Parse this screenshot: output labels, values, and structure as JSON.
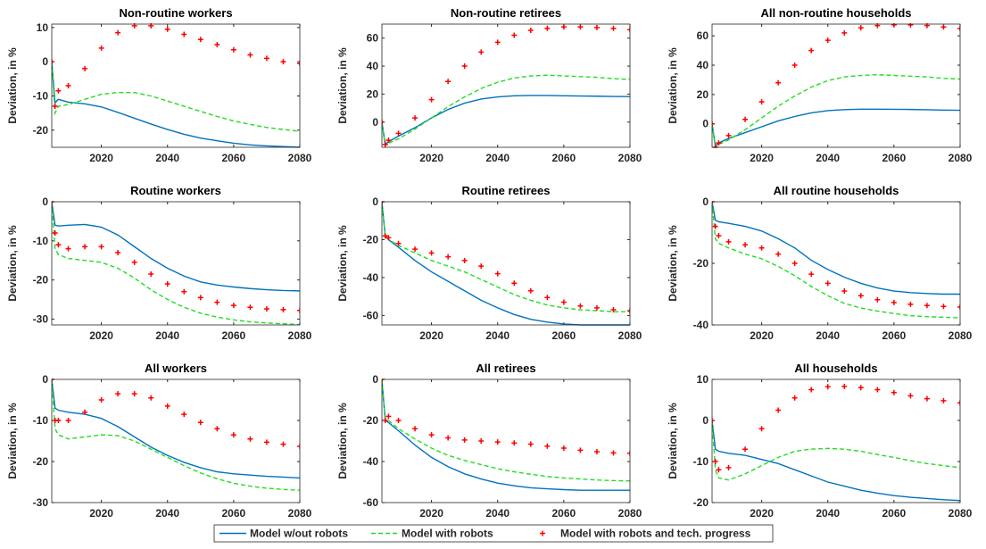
{
  "chart_data": [
    {
      "type": "line",
      "title": "Non-routine workers",
      "ylabel": "Deviation, in %",
      "x": [
        2005,
        2006,
        2007,
        2010,
        2015,
        2020,
        2025,
        2030,
        2035,
        2040,
        2045,
        2050,
        2055,
        2060,
        2065,
        2070,
        2075,
        2080
      ],
      "xlim": [
        2005,
        2080
      ],
      "xticks": [
        2020,
        2040,
        2060,
        2080
      ],
      "ylim": [
        -25,
        11
      ],
      "yticks": [
        -20,
        -10,
        0,
        10
      ],
      "series": [
        {
          "name": "Model w/out robots",
          "color": "#0072bd",
          "style": "solid",
          "values": [
            0,
            -12,
            -11,
            -11.8,
            -12.3,
            -13.2,
            -14.8,
            -16.5,
            -18.2,
            -19.8,
            -21.2,
            -22.3,
            -23.1,
            -23.8,
            -24.3,
            -24.6,
            -24.8,
            -25
          ]
        },
        {
          "name": "Model with robots",
          "color": "#22dd22",
          "style": "dashed",
          "values": [
            0,
            -15,
            -13,
            -12.5,
            -11,
            -9.5,
            -9,
            -9,
            -10,
            -11.5,
            -13,
            -14.5,
            -16,
            -17.3,
            -18.3,
            -19.2,
            -19.8,
            -20.3
          ]
        },
        {
          "name": "Model with robots and tech. progress",
          "color": "#ff0000",
          "style": "markers",
          "values": [
            0,
            -13,
            -8.5,
            -7,
            -2,
            4,
            8.5,
            10.5,
            10.5,
            9.5,
            8,
            6.5,
            5,
            3.5,
            2,
            1,
            0,
            -0.5
          ]
        }
      ]
    },
    {
      "type": "line",
      "title": "Non-routine retirees",
      "ylabel": "Deviation, in %",
      "x": [
        2005,
        2006,
        2007,
        2010,
        2015,
        2020,
        2025,
        2030,
        2035,
        2040,
        2045,
        2050,
        2055,
        2060,
        2065,
        2070,
        2075,
        2080
      ],
      "xlim": [
        2005,
        2080
      ],
      "xticks": [
        2020,
        2040,
        2060,
        2080
      ],
      "ylim": [
        -18,
        70
      ],
      "yticks": [
        0,
        20,
        40,
        60
      ],
      "series": [
        {
          "color": "#0072bd",
          "style": "solid",
          "values": [
            0,
            -16,
            -14,
            -10,
            -4,
            3,
            9,
            13.5,
            16.5,
            18,
            18.8,
            19,
            19,
            18.8,
            18.6,
            18.5,
            18.3,
            18.2
          ]
        },
        {
          "color": "#22dd22",
          "style": "dashed",
          "values": [
            0,
            -17,
            -15,
            -12,
            -5,
            3,
            11,
            18,
            24,
            28.5,
            31.5,
            33,
            33.5,
            33,
            32.5,
            32,
            31,
            30.5
          ]
        },
        {
          "color": "#ff0000",
          "style": "markers",
          "values": [
            0,
            -16,
            -13,
            -8,
            3,
            16,
            29,
            40,
            50,
            57,
            62,
            65.5,
            67,
            68,
            68,
            67.5,
            67,
            66
          ]
        }
      ]
    },
    {
      "type": "line",
      "title": "All non-routine households",
      "ylabel": "Deviation, in %",
      "x": [
        2005,
        2006,
        2007,
        2010,
        2015,
        2020,
        2025,
        2030,
        2035,
        2040,
        2045,
        2050,
        2055,
        2060,
        2065,
        2070,
        2075,
        2080
      ],
      "xlim": [
        2005,
        2080
      ],
      "xticks": [
        2020,
        2040,
        2060,
        2080
      ],
      "ylim": [
        -16,
        68
      ],
      "yticks": [
        0,
        20,
        40,
        60
      ],
      "series": [
        {
          "color": "#0072bd",
          "style": "solid",
          "values": [
            0,
            -15,
            -13,
            -10,
            -6,
            -2,
            2,
            5,
            7.5,
            9,
            9.7,
            10,
            10,
            9.9,
            9.8,
            9.6,
            9.4,
            9.2
          ]
        },
        {
          "color": "#22dd22",
          "style": "dashed",
          "values": [
            0,
            -16,
            -14,
            -11,
            -4,
            4,
            12,
            19,
            25,
            29.5,
            32,
            33,
            33.5,
            33,
            32.5,
            32,
            31,
            30.5
          ]
        },
        {
          "color": "#ff0000",
          "style": "markers",
          "values": [
            0,
            -16,
            -13,
            -8,
            3,
            15,
            28,
            40,
            50,
            57,
            62,
            65.5,
            67,
            67.5,
            67.5,
            67,
            66,
            65
          ]
        }
      ]
    },
    {
      "type": "line",
      "title": "Routine workers",
      "ylabel": "Deviation, in %",
      "x": [
        2005,
        2006,
        2007,
        2010,
        2015,
        2020,
        2025,
        2030,
        2035,
        2040,
        2045,
        2050,
        2055,
        2060,
        2065,
        2070,
        2075,
        2080
      ],
      "xlim": [
        2005,
        2080
      ],
      "xticks": [
        2020,
        2040,
        2060,
        2080
      ],
      "ylim": [
        -31.5,
        0
      ],
      "yticks": [
        -30,
        -20,
        -10,
        0
      ],
      "series": [
        {
          "color": "#0072bd",
          "style": "solid",
          "values": [
            0,
            -6,
            -6.2,
            -6,
            -5.8,
            -6.5,
            -8.5,
            -11.5,
            -14.5,
            -17,
            -19,
            -20.5,
            -21.3,
            -21.8,
            -22.2,
            -22.5,
            -22.7,
            -22.8
          ]
        },
        {
          "color": "#22dd22",
          "style": "dashed",
          "values": [
            0,
            -12,
            -13.5,
            -14.5,
            -15,
            -15.5,
            -17,
            -19.5,
            -22.5,
            -25,
            -27,
            -28.5,
            -29.5,
            -30.2,
            -30.7,
            -31,
            -31.2,
            -31.4
          ]
        },
        {
          "color": "#ff0000",
          "style": "markers",
          "values": [
            0,
            -8,
            -11,
            -12,
            -11.5,
            -11.5,
            -13,
            -15.5,
            -18.5,
            -21,
            -23,
            -24.5,
            -25.7,
            -26.5,
            -27,
            -27.4,
            -27.6,
            -27.8
          ]
        }
      ]
    },
    {
      "type": "line",
      "title": "Routine retirees",
      "ylabel": "Deviation, in %",
      "x": [
        2005,
        2006,
        2007,
        2010,
        2015,
        2020,
        2025,
        2030,
        2035,
        2040,
        2045,
        2050,
        2055,
        2060,
        2065,
        2070,
        2075,
        2080
      ],
      "xlim": [
        2005,
        2080
      ],
      "xticks": [
        2020,
        2040,
        2060,
        2080
      ],
      "ylim": [
        -65,
        0
      ],
      "yticks": [
        -60,
        -40,
        -20,
        0
      ],
      "series": [
        {
          "color": "#0072bd",
          "style": "solid",
          "values": [
            0,
            -18,
            -20,
            -24,
            -31,
            -37,
            -42,
            -47,
            -52,
            -56,
            -59.5,
            -62,
            -63.5,
            -64.5,
            -65,
            -65,
            -65,
            -65
          ]
        },
        {
          "color": "#22dd22",
          "style": "dashed",
          "values": [
            0,
            -18,
            -20,
            -23,
            -27,
            -31,
            -34,
            -37,
            -41,
            -45,
            -49,
            -52,
            -54.5,
            -56,
            -57,
            -57.5,
            -58,
            -58
          ]
        },
        {
          "color": "#ff0000",
          "style": "markers",
          "values": [
            0,
            -18,
            -19,
            -22,
            -25,
            -27,
            -29,
            -31,
            -34,
            -38,
            -43,
            -47,
            -50.5,
            -53,
            -55,
            -56,
            -57,
            -57.5
          ]
        }
      ]
    },
    {
      "type": "line",
      "title": "All routine households",
      "ylabel": "Deviation, in %",
      "x": [
        2005,
        2006,
        2007,
        2010,
        2015,
        2020,
        2025,
        2030,
        2035,
        2040,
        2045,
        2050,
        2055,
        2060,
        2065,
        2070,
        2075,
        2080
      ],
      "xlim": [
        2005,
        2080
      ],
      "xticks": [
        2020,
        2040,
        2060,
        2080
      ],
      "ylim": [
        -40,
        0
      ],
      "yticks": [
        -40,
        -20,
        0
      ],
      "series": [
        {
          "color": "#0072bd",
          "style": "solid",
          "values": [
            0,
            -6,
            -6.5,
            -7,
            -8,
            -9.5,
            -12,
            -15,
            -19,
            -22,
            -24.5,
            -26.5,
            -28,
            -29,
            -29.5,
            -29.8,
            -30,
            -30
          ]
        },
        {
          "color": "#22dd22",
          "style": "dashed",
          "values": [
            0,
            -12,
            -13.5,
            -15,
            -17,
            -18.5,
            -21,
            -24,
            -27.5,
            -30.5,
            -33,
            -34.5,
            -35.5,
            -36.3,
            -37,
            -37.3,
            -37.5,
            -37.7
          ]
        },
        {
          "color": "#ff0000",
          "style": "markers",
          "values": [
            0,
            -8,
            -11,
            -13,
            -14,
            -15,
            -17,
            -20,
            -23.5,
            -26.5,
            -29,
            -30.5,
            -31.8,
            -32.7,
            -33.3,
            -33.7,
            -34,
            -34.2
          ]
        }
      ]
    },
    {
      "type": "line",
      "title": "All workers",
      "ylabel": "Deviation, in %",
      "x": [
        2005,
        2006,
        2007,
        2010,
        2015,
        2020,
        2025,
        2030,
        2035,
        2040,
        2045,
        2050,
        2055,
        2060,
        2065,
        2070,
        2075,
        2080
      ],
      "xlim": [
        2005,
        2080
      ],
      "xticks": [
        2020,
        2040,
        2060,
        2080
      ],
      "ylim": [
        -30,
        0
      ],
      "yticks": [
        -30,
        -20,
        -10,
        0
      ],
      "series": [
        {
          "color": "#0072bd",
          "style": "solid",
          "values": [
            0,
            -7,
            -7.5,
            -8,
            -8.5,
            -9.5,
            -11.5,
            -14,
            -16.5,
            -18.5,
            -20.2,
            -21.5,
            -22.5,
            -23,
            -23.3,
            -23.6,
            -23.8,
            -24
          ]
        },
        {
          "color": "#22dd22",
          "style": "dashed",
          "values": [
            0,
            -12,
            -13.5,
            -14.5,
            -14,
            -13.5,
            -13.7,
            -15,
            -17,
            -19,
            -21,
            -22.8,
            -24.2,
            -25.3,
            -26,
            -26.5,
            -26.8,
            -27
          ]
        },
        {
          "color": "#ff0000",
          "style": "markers",
          "values": [
            0,
            -10,
            -10,
            -10,
            -8,
            -5,
            -3.5,
            -3.5,
            -4.5,
            -6.5,
            -8.5,
            -10.5,
            -12,
            -13.5,
            -14.5,
            -15.3,
            -15.8,
            -16.3
          ]
        }
      ]
    },
    {
      "type": "line",
      "title": "All retirees",
      "ylabel": "Deviation, in %",
      "x": [
        2005,
        2006,
        2007,
        2010,
        2015,
        2020,
        2025,
        2030,
        2035,
        2040,
        2045,
        2050,
        2055,
        2060,
        2065,
        2070,
        2075,
        2080
      ],
      "xlim": [
        2005,
        2080
      ],
      "xticks": [
        2020,
        2040,
        2060,
        2080
      ],
      "ylim": [
        -60,
        0
      ],
      "yticks": [
        -60,
        -40,
        -20,
        0
      ],
      "series": [
        {
          "color": "#0072bd",
          "style": "solid",
          "values": [
            0,
            -20,
            -21,
            -25,
            -32,
            -38,
            -42.5,
            -46,
            -48.5,
            -50.5,
            -51.8,
            -52.8,
            -53.3,
            -53.7,
            -54,
            -54,
            -54,
            -54
          ]
        },
        {
          "color": "#22dd22",
          "style": "dashed",
          "values": [
            0,
            -19,
            -20,
            -24,
            -29,
            -33.5,
            -37,
            -39.5,
            -41.5,
            -43.5,
            -45,
            -46.2,
            -47.3,
            -48,
            -48.5,
            -49,
            -49.3,
            -49.5
          ]
        },
        {
          "color": "#ff0000",
          "style": "markers",
          "values": [
            0,
            -20,
            -18,
            -20,
            -24,
            -27,
            -28.5,
            -29.5,
            -30,
            -30.5,
            -31,
            -31.5,
            -32.5,
            -33.5,
            -34.5,
            -35.2,
            -35.8,
            -36
          ]
        }
      ]
    },
    {
      "type": "line",
      "title": "All households",
      "ylabel": "Deviation, in %",
      "x": [
        2005,
        2006,
        2007,
        2010,
        2015,
        2020,
        2025,
        2030,
        2035,
        2040,
        2045,
        2050,
        2055,
        2060,
        2065,
        2070,
        2075,
        2080
      ],
      "xlim": [
        2005,
        2080
      ],
      "xticks": [
        2020,
        2040,
        2060,
        2080
      ],
      "ylim": [
        -20,
        10
      ],
      "yticks": [
        -20,
        -10,
        0,
        10
      ],
      "series": [
        {
          "color": "#0072bd",
          "style": "solid",
          "values": [
            0,
            -7,
            -7.5,
            -8,
            -8.5,
            -9.5,
            -10.5,
            -12,
            -13.5,
            -15,
            -16,
            -17,
            -17.7,
            -18.3,
            -18.7,
            -19,
            -19.3,
            -19.5
          ]
        },
        {
          "color": "#22dd22",
          "style": "dashed",
          "values": [
            0,
            -12,
            -14,
            -14.5,
            -13,
            -11,
            -9,
            -7.5,
            -7,
            -6.8,
            -7,
            -7.5,
            -8.3,
            -9,
            -9.8,
            -10.5,
            -11,
            -11.5
          ]
        },
        {
          "color": "#ff0000",
          "style": "markers",
          "values": [
            0,
            -10,
            -12,
            -11.5,
            -7,
            -2,
            2.5,
            5.5,
            7.5,
            8.2,
            8.3,
            8,
            7.5,
            6.8,
            6,
            5.3,
            4.8,
            4.3
          ]
        }
      ]
    }
  ]
}
